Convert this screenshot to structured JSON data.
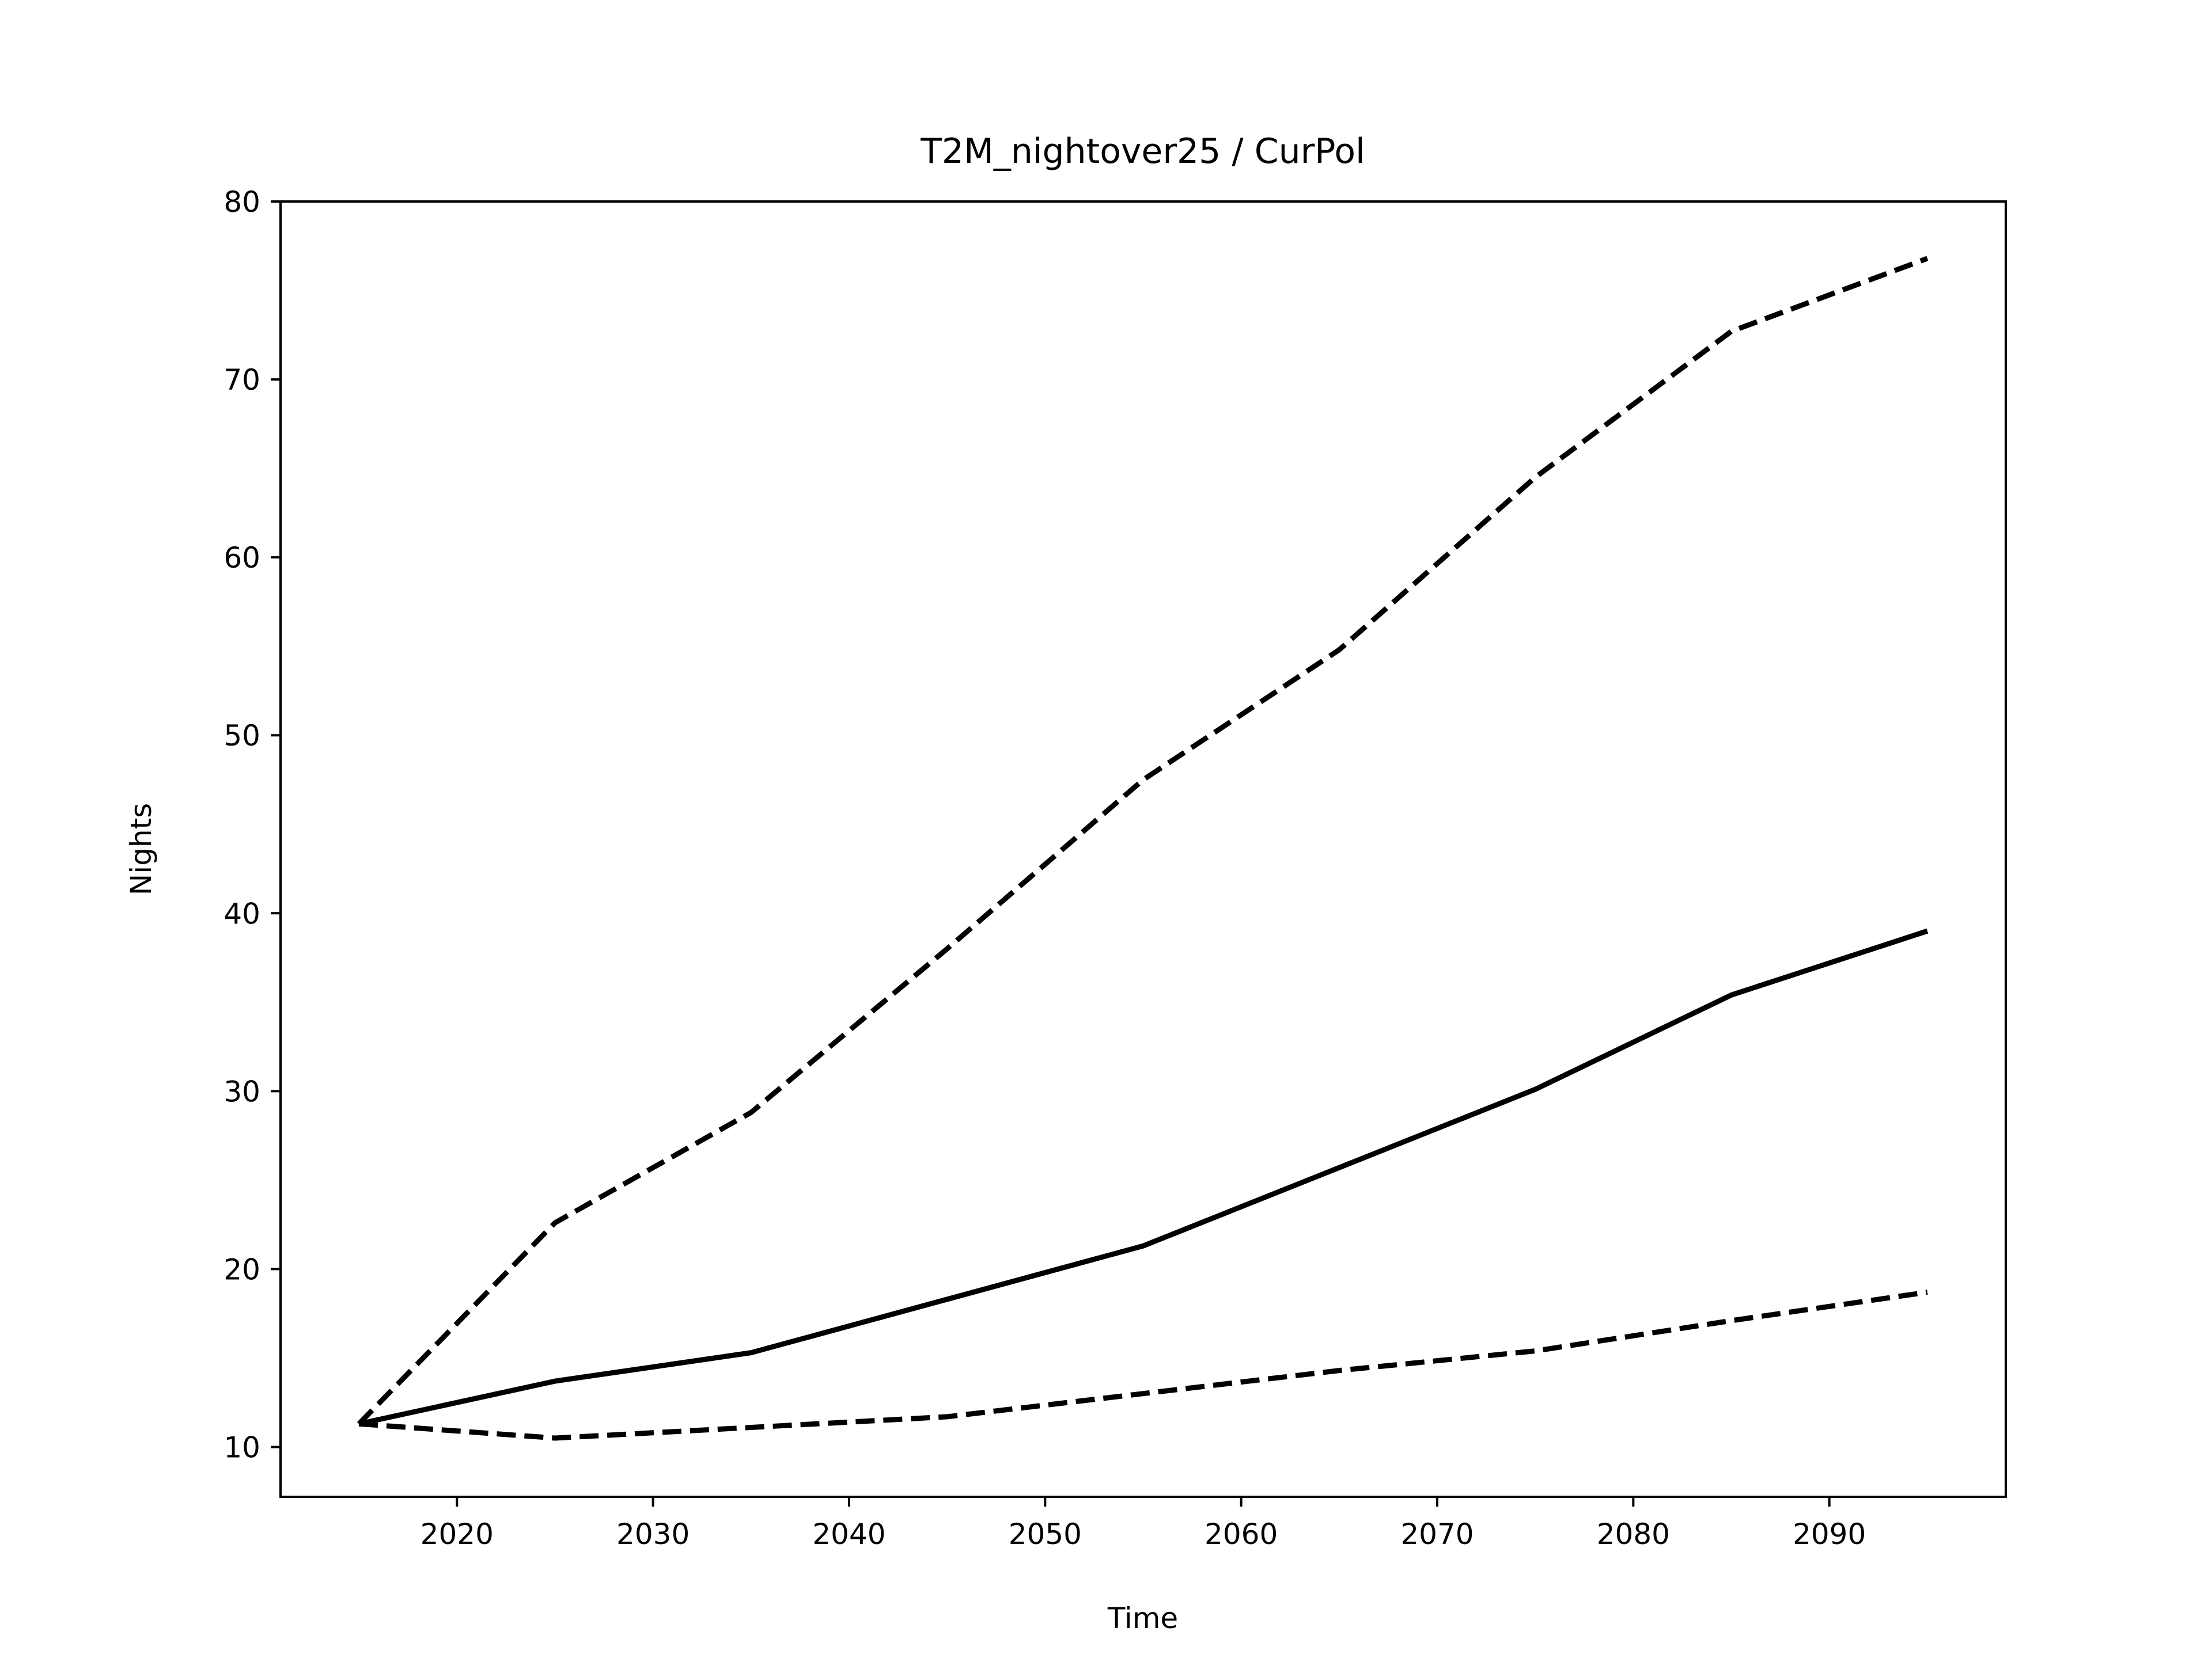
{
  "chart_data": {
    "type": "line",
    "title": "T2M_nightover25 / CurPol",
    "xlabel": "Time",
    "ylabel": "Nights",
    "xlim": [
      2011,
      2099
    ],
    "ylim": [
      7.2,
      80
    ],
    "xticks": [
      2020,
      2030,
      2040,
      2050,
      2060,
      2070,
      2080,
      2090
    ],
    "yticks": [
      10,
      20,
      30,
      40,
      50,
      60,
      70,
      80
    ],
    "grid": false,
    "legend": "none",
    "series": [
      {
        "style": "solid",
        "color": "#000000",
        "x": [
          2015,
          2025,
          2035,
          2045,
          2055,
          2065,
          2075,
          2085,
          2095
        ],
        "y": [
          11.3,
          13.7,
          15.3,
          18.3,
          21.3,
          25.7,
          30.1,
          35.4,
          39.0
        ]
      },
      {
        "style": "dashed",
        "color": "#000000",
        "x": [
          2015,
          2025,
          2035,
          2045,
          2055,
          2065,
          2075,
          2085,
          2095
        ],
        "y": [
          11.3,
          22.6,
          28.8,
          38.0,
          47.5,
          54.8,
          64.5,
          72.7,
          76.8
        ]
      },
      {
        "style": "dashed",
        "color": "#000000",
        "x": [
          2015,
          2025,
          2035,
          2045,
          2055,
          2065,
          2075,
          2085,
          2095
        ],
        "y": [
          11.3,
          10.5,
          11.1,
          11.7,
          13.0,
          14.3,
          15.4,
          17.1,
          18.7
        ]
      }
    ]
  }
}
